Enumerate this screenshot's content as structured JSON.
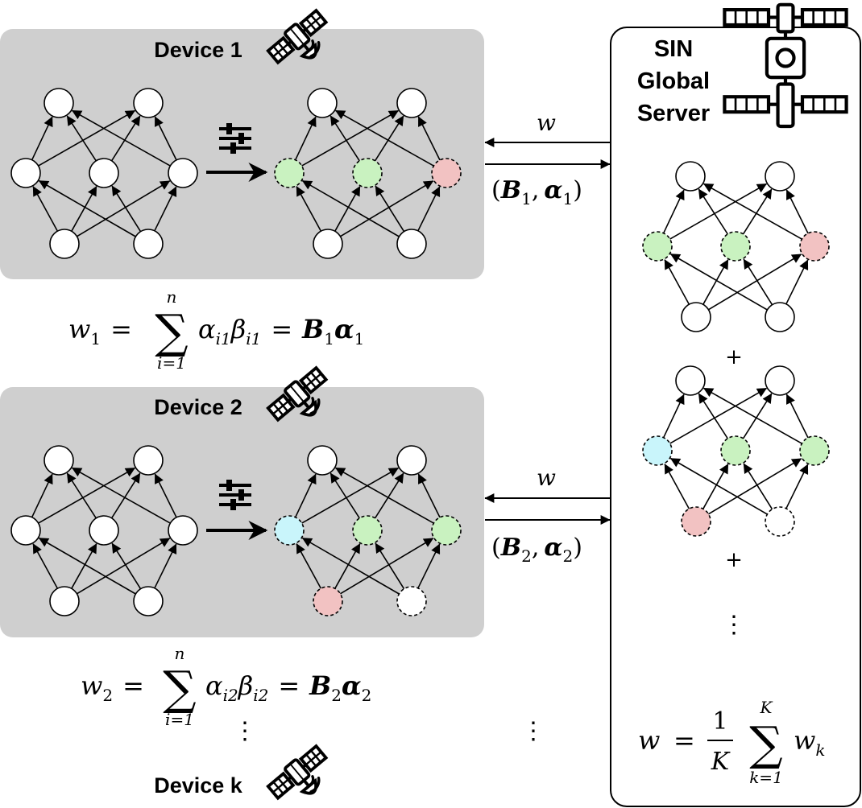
{
  "devices": [
    {
      "title": "Device 1",
      "equation": {
        "lhs_var": "w",
        "lhs_sub": "1",
        "eq": "=",
        "sum_upper": "n",
        "sum_lower": "i=1",
        "a_sym": "α",
        "a_sub": "i1",
        "b_sym": "β",
        "b_sub": "i1",
        "eq2": "=",
        "B_sym": "B",
        "B_sub": "1",
        "alpha_sym": "α",
        "alpha_sub": "1"
      },
      "arrow_in_label": "w",
      "arrow_out_label": {
        "open": "(",
        "B_sym": "B",
        "B_sub": "1",
        "comma": ",",
        "alpha_sym": "α",
        "alpha_sub": "1",
        "close": ")"
      },
      "tuned_colors": {
        "m1": "#c9f2c0",
        "m2": "#c9f2c0",
        "m3": "#f2c2c2",
        "b1": "#ffffff",
        "b2": "#ffffff"
      },
      "tuned_dashed": {
        "m1": true,
        "m2": true,
        "m3": true,
        "b1": false,
        "b2": false
      }
    },
    {
      "title": "Device 2",
      "equation": {
        "lhs_var": "w",
        "lhs_sub": "2",
        "eq": "=",
        "sum_upper": "n",
        "sum_lower": "i=1",
        "a_sym": "α",
        "a_sub": "i2",
        "b_sym": "β",
        "b_sub": "i2",
        "eq2": "=",
        "B_sym": "B",
        "B_sub": "2",
        "alpha_sym": "α",
        "alpha_sub": "2"
      },
      "arrow_in_label": "w",
      "arrow_out_label": {
        "open": "(",
        "B_sym": "B",
        "B_sub": "2",
        "comma": ",",
        "alpha_sym": "α",
        "alpha_sub": "2",
        "close": ")"
      },
      "tuned_colors": {
        "m1": "#c9f5fb",
        "m2": "#c9f2c0",
        "m3": "#c9f2c0",
        "b1": "#f2c2c2",
        "b2": "#ffffff"
      },
      "tuned_dashed": {
        "m1": true,
        "m2": true,
        "m3": true,
        "b1": true,
        "b2": true
      }
    },
    {
      "title": "Device k"
    }
  ],
  "server": {
    "title_lines": [
      "SIN",
      "Global",
      "Server"
    ],
    "plus": "+",
    "net1_colors": {
      "m1": "#c9f2c0",
      "m2": "#c9f2c0",
      "m3": "#f2c2c2",
      "b1": "#ffffff",
      "b2": "#ffffff"
    },
    "net1_dashed": {
      "m1": true,
      "m2": true,
      "m3": true,
      "b1": false,
      "b2": false
    },
    "net2_colors": {
      "m1": "#c9f5fb",
      "m2": "#c9f2c0",
      "m3": "#c9f2c0",
      "b1": "#f2c2c2",
      "b2": "#ffffff"
    },
    "net2_dashed": {
      "m1": true,
      "m2": true,
      "m3": true,
      "b1": true,
      "b2": true
    },
    "aggregate": {
      "lhs": "w",
      "eq": "=",
      "num": "1",
      "den": "K",
      "sum_upper": "K",
      "sum_lower": "k=1",
      "var": "w",
      "var_sub": "k"
    }
  },
  "ellipsis": "⋮",
  "icons": [
    "sliders-icon",
    "satellite-icon",
    "space-station-icon"
  ]
}
